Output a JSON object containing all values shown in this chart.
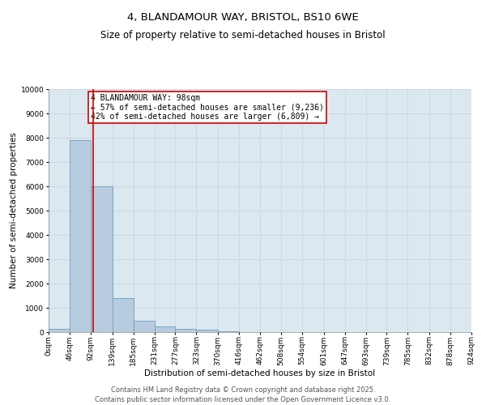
{
  "title_line1": "4, BLANDAMOUR WAY, BRISTOL, BS10 6WE",
  "title_line2": "Size of property relative to semi-detached houses in Bristol",
  "xlabel": "Distribution of semi-detached houses by size in Bristol",
  "ylabel": "Number of semi-detached properties",
  "bar_color": "#b8ccdf",
  "bar_edge_color": "#6a9fc0",
  "bin_edges": [
    0,
    46,
    92,
    139,
    185,
    231,
    277,
    323,
    370,
    416,
    462,
    508,
    554,
    601,
    647,
    693,
    739,
    785,
    832,
    878,
    924
  ],
  "bin_labels": [
    "0sqm",
    "46sqm",
    "92sqm",
    "139sqm",
    "185sqm",
    "231sqm",
    "277sqm",
    "323sqm",
    "370sqm",
    "416sqm",
    "462sqm",
    "508sqm",
    "554sqm",
    "601sqm",
    "647sqm",
    "693sqm",
    "739sqm",
    "785sqm",
    "832sqm",
    "878sqm",
    "924sqm"
  ],
  "bar_heights": [
    150,
    7900,
    6000,
    1400,
    480,
    250,
    130,
    100,
    50,
    10,
    5,
    3,
    2,
    1,
    1,
    0,
    0,
    0,
    0,
    0
  ],
  "property_size": 98,
  "red_line_color": "#cc0000",
  "annotation_text": "4 BLANDAMOUR WAY: 98sqm\n← 57% of semi-detached houses are smaller (9,236)\n42% of semi-detached houses are larger (6,809) →",
  "annotation_box_color": "#cc0000",
  "ylim": [
    0,
    10000
  ],
  "yticks": [
    0,
    1000,
    2000,
    3000,
    4000,
    5000,
    6000,
    7000,
    8000,
    9000,
    10000
  ],
  "grid_color": "#c8d4e4",
  "background_color": "#dce8f0",
  "footer_line1": "Contains HM Land Registry data © Crown copyright and database right 2025.",
  "footer_line2": "Contains public sector information licensed under the Open Government Licence v3.0.",
  "title_fontsize": 9.5,
  "subtitle_fontsize": 8.5,
  "axis_label_fontsize": 7.5,
  "tick_fontsize": 6.5,
  "annotation_fontsize": 7,
  "footer_fontsize": 6
}
